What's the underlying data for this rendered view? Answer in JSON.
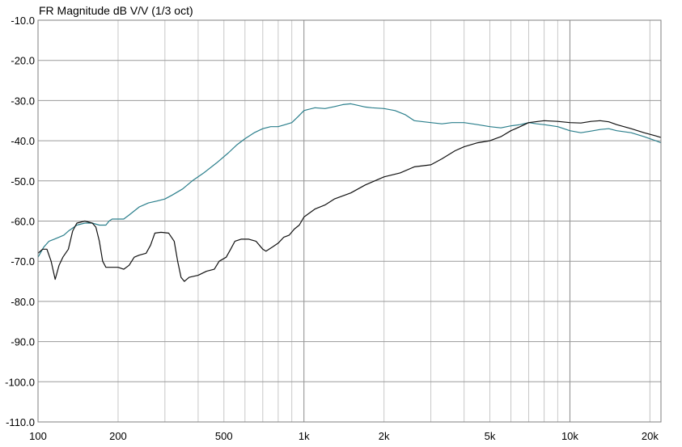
{
  "chart_data": {
    "type": "line",
    "title": "FR Magnitude dB V/V (1/3 oct)",
    "xlabel": "",
    "ylabel": "",
    "xscale": "log",
    "xlim": [
      100,
      22000
    ],
    "ylim": [
      -110,
      -10
    ],
    "grid": true,
    "y_ticks": [
      -10,
      -20,
      -30,
      -40,
      -50,
      -60,
      -70,
      -80,
      -90,
      -100,
      -110
    ],
    "y_tick_labels": [
      "-10.0",
      "-20.0",
      "-30.0",
      "-40.0",
      "-50.0",
      "-60.0",
      "-70.0",
      "-80.0",
      "-90.0",
      "-100.0",
      "-110.0"
    ],
    "x_ticks": [
      100,
      200,
      500,
      1000,
      2000,
      5000,
      10000,
      20000
    ],
    "x_tick_labels": [
      "100",
      "200",
      "500",
      "1k",
      "2k",
      "5k",
      "10k",
      "20k"
    ],
    "series": [
      {
        "color": "#2b7f8c",
        "points": [
          [
            100,
            -69
          ],
          [
            105,
            -66.5
          ],
          [
            110,
            -65
          ],
          [
            115,
            -64.5
          ],
          [
            120,
            -64
          ],
          [
            125,
            -63.5
          ],
          [
            130,
            -62.5
          ],
          [
            140,
            -61
          ],
          [
            150,
            -60.5
          ],
          [
            160,
            -60.5
          ],
          [
            170,
            -61
          ],
          [
            180,
            -61
          ],
          [
            185,
            -60
          ],
          [
            190,
            -59.5
          ],
          [
            200,
            -59.5
          ],
          [
            210,
            -59.5
          ],
          [
            220,
            -58.5
          ],
          [
            240,
            -56.5
          ],
          [
            260,
            -55.5
          ],
          [
            280,
            -55
          ],
          [
            300,
            -54.5
          ],
          [
            320,
            -53.5
          ],
          [
            350,
            -52
          ],
          [
            380,
            -50
          ],
          [
            420,
            -48
          ],
          [
            470,
            -45.5
          ],
          [
            520,
            -43
          ],
          [
            560,
            -41
          ],
          [
            600,
            -39.5
          ],
          [
            650,
            -38
          ],
          [
            700,
            -37
          ],
          [
            750,
            -36.5
          ],
          [
            800,
            -36.5
          ],
          [
            850,
            -36
          ],
          [
            900,
            -35.5
          ],
          [
            950,
            -34
          ],
          [
            1000,
            -32.5
          ],
          [
            1100,
            -31.8
          ],
          [
            1200,
            -32
          ],
          [
            1300,
            -31.5
          ],
          [
            1400,
            -31
          ],
          [
            1500,
            -30.8
          ],
          [
            1600,
            -31.2
          ],
          [
            1700,
            -31.6
          ],
          [
            1800,
            -31.8
          ],
          [
            2000,
            -32
          ],
          [
            2200,
            -32.5
          ],
          [
            2400,
            -33.5
          ],
          [
            2600,
            -35
          ],
          [
            3000,
            -35.5
          ],
          [
            3300,
            -35.8
          ],
          [
            3600,
            -35.5
          ],
          [
            4000,
            -35.5
          ],
          [
            4500,
            -36
          ],
          [
            5000,
            -36.5
          ],
          [
            5500,
            -36.8
          ],
          [
            6000,
            -36.3
          ],
          [
            6500,
            -36
          ],
          [
            7000,
            -35.5
          ],
          [
            7500,
            -35.8
          ],
          [
            8000,
            -36
          ],
          [
            9000,
            -36.5
          ],
          [
            10000,
            -37.5
          ],
          [
            11000,
            -38
          ],
          [
            12000,
            -37.6
          ],
          [
            13000,
            -37.2
          ],
          [
            14000,
            -37
          ],
          [
            15000,
            -37.5
          ],
          [
            17000,
            -38
          ],
          [
            19000,
            -39
          ],
          [
            21000,
            -40
          ],
          [
            22000,
            -40.5
          ]
        ]
      },
      {
        "color": "#111111",
        "points": [
          [
            100,
            -68
          ],
          [
            104,
            -67
          ],
          [
            108,
            -67
          ],
          [
            112,
            -70
          ],
          [
            116,
            -74.5
          ],
          [
            120,
            -71
          ],
          [
            124,
            -69
          ],
          [
            130,
            -67
          ],
          [
            135,
            -62.5
          ],
          [
            140,
            -60.5
          ],
          [
            150,
            -60
          ],
          [
            160,
            -60.5
          ],
          [
            165,
            -61.5
          ],
          [
            170,
            -65
          ],
          [
            175,
            -70
          ],
          [
            180,
            -71.5
          ],
          [
            185,
            -71.5
          ],
          [
            190,
            -71.5
          ],
          [
            200,
            -71.5
          ],
          [
            210,
            -72
          ],
          [
            220,
            -71
          ],
          [
            230,
            -69
          ],
          [
            240,
            -68.5
          ],
          [
            255,
            -68
          ],
          [
            265,
            -66
          ],
          [
            275,
            -63
          ],
          [
            290,
            -62.8
          ],
          [
            310,
            -63
          ],
          [
            325,
            -65
          ],
          [
            335,
            -70
          ],
          [
            345,
            -74
          ],
          [
            355,
            -75
          ],
          [
            370,
            -74
          ],
          [
            400,
            -73.5
          ],
          [
            430,
            -72.5
          ],
          [
            460,
            -72
          ],
          [
            480,
            -70
          ],
          [
            510,
            -69
          ],
          [
            530,
            -67
          ],
          [
            550,
            -65
          ],
          [
            580,
            -64.5
          ],
          [
            620,
            -64.5
          ],
          [
            660,
            -65
          ],
          [
            700,
            -67
          ],
          [
            720,
            -67.5
          ],
          [
            760,
            -66.5
          ],
          [
            800,
            -65.5
          ],
          [
            840,
            -64
          ],
          [
            880,
            -63.5
          ],
          [
            920,
            -62
          ],
          [
            960,
            -61
          ],
          [
            1000,
            -59
          ],
          [
            1100,
            -57
          ],
          [
            1200,
            -56
          ],
          [
            1300,
            -54.5
          ],
          [
            1500,
            -53
          ],
          [
            1700,
            -51
          ],
          [
            2000,
            -49
          ],
          [
            2300,
            -48
          ],
          [
            2600,
            -46.5
          ],
          [
            3000,
            -46
          ],
          [
            3300,
            -44.5
          ],
          [
            3700,
            -42.5
          ],
          [
            4000,
            -41.5
          ],
          [
            4500,
            -40.5
          ],
          [
            5000,
            -40
          ],
          [
            5500,
            -39
          ],
          [
            6000,
            -37.5
          ],
          [
            6500,
            -36.5
          ],
          [
            7000,
            -35.5
          ],
          [
            8000,
            -35
          ],
          [
            9000,
            -35.2
          ],
          [
            10000,
            -35.5
          ],
          [
            11000,
            -35.6
          ],
          [
            12000,
            -35.2
          ],
          [
            13000,
            -35
          ],
          [
            14000,
            -35.3
          ],
          [
            15000,
            -36
          ],
          [
            17000,
            -37
          ],
          [
            19000,
            -38
          ],
          [
            21000,
            -38.8
          ],
          [
            22000,
            -39.2
          ]
        ]
      }
    ]
  }
}
